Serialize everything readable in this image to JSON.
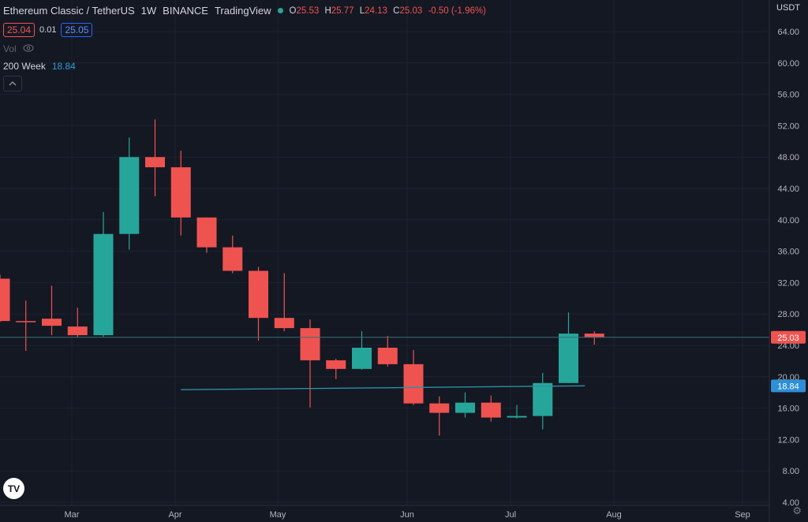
{
  "legend": {
    "title": "Ethereum Classic / TetherUS",
    "interval": "1W",
    "exchange": "BINANCE",
    "source": "TradingView",
    "status_color": "#26a69a",
    "open_label": "O",
    "open": "25.53",
    "high_label": "H",
    "high": "25.77",
    "low_label": "L",
    "low": "24.13",
    "close_label": "C",
    "close": "25.03",
    "change": "-0.50 (-1.96%)",
    "bid": "25.04",
    "spread": "0.01",
    "ask": "25.05",
    "vol_label": "Vol",
    "eye_icon": "eye-icon",
    "ma_label": "200 Week",
    "ma_value": "18.84",
    "collapse_icon": "chevron-up-icon"
  },
  "axis": {
    "currency": "USDT",
    "settings_icon": "gear-icon"
  },
  "colors": {
    "background": "#141823",
    "up": "#26a69a",
    "down": "#ef5350",
    "ma": "#2c8fa3",
    "ma_tag": "#2f8fd6",
    "grid": "#1e2230",
    "text": "#d1d4dc",
    "axis_text": "#b2b5be"
  },
  "chart_data": {
    "type": "candlestick",
    "title": "Ethereum Classic / TetherUS",
    "interval": "1W",
    "y_axis": {
      "label": "USDT",
      "ticks": [
        "4.00",
        "8.00",
        "12.00",
        "16.00",
        "20.00",
        "24.00",
        "28.00",
        "32.00",
        "36.00",
        "40.00",
        "44.00",
        "48.00",
        "52.00",
        "56.00",
        "60.00",
        "64.00"
      ],
      "range": [
        4,
        66
      ]
    },
    "x_axis": {
      "ticks": [
        "Mar",
        "Apr",
        "May",
        "Jun",
        "Jul",
        "Aug",
        "Sep"
      ]
    },
    "grid": true,
    "candles": [
      {
        "open": 32.5,
        "high": 33.0,
        "low": 27.0,
        "close": 27.1
      },
      {
        "open": 27.1,
        "high": 29.7,
        "low": 23.3,
        "close": 27.0
      },
      {
        "open": 27.4,
        "high": 31.6,
        "low": 25.3,
        "close": 26.5
      },
      {
        "open": 26.4,
        "high": 28.8,
        "low": 25.0,
        "close": 25.3
      },
      {
        "open": 25.3,
        "high": 41.0,
        "low": 25.1,
        "close": 38.2
      },
      {
        "open": 38.2,
        "high": 50.5,
        "low": 36.2,
        "close": 48.0
      },
      {
        "open": 48.0,
        "high": 52.8,
        "low": 43.0,
        "close": 46.7
      },
      {
        "open": 46.7,
        "high": 48.8,
        "low": 38.0,
        "close": 40.3
      },
      {
        "open": 40.3,
        "high": 40.3,
        "low": 35.8,
        "close": 36.5
      },
      {
        "open": 36.5,
        "high": 38.0,
        "low": 33.2,
        "close": 33.5
      },
      {
        "open": 33.5,
        "high": 34.0,
        "low": 24.6,
        "close": 27.5
      },
      {
        "open": 27.5,
        "high": 33.2,
        "low": 25.8,
        "close": 26.2
      },
      {
        "open": 26.2,
        "high": 27.3,
        "low": 16.1,
        "close": 22.1
      },
      {
        "open": 22.1,
        "high": 22.3,
        "low": 19.7,
        "close": 21.0
      },
      {
        "open": 21.0,
        "high": 25.8,
        "low": 20.9,
        "close": 23.7
      },
      {
        "open": 23.7,
        "high": 25.2,
        "low": 21.3,
        "close": 21.6
      },
      {
        "open": 21.6,
        "high": 23.4,
        "low": 16.4,
        "close": 16.6
      },
      {
        "open": 16.6,
        "high": 17.5,
        "low": 12.5,
        "close": 15.4
      },
      {
        "open": 15.4,
        "high": 18.0,
        "low": 14.8,
        "close": 16.7
      },
      {
        "open": 16.7,
        "high": 17.6,
        "low": 14.3,
        "close": 14.8
      },
      {
        "open": 14.8,
        "high": 16.4,
        "low": 14.7,
        "close": 15.0
      },
      {
        "open": 15.0,
        "high": 20.5,
        "low": 13.3,
        "close": 19.2
      },
      {
        "open": 19.2,
        "high": 28.2,
        "low": 19.2,
        "close": 25.5
      },
      {
        "open": 25.5,
        "high": 25.8,
        "low": 24.1,
        "close": 25.0
      }
    ],
    "moving_average": {
      "name": "200 Week",
      "start_candle": 7,
      "end_candle": 23,
      "start_value": 18.35,
      "end_value": 18.84
    },
    "last_price": 25.03,
    "last_price_label": "25.03",
    "ma_price_label": "18.84"
  }
}
